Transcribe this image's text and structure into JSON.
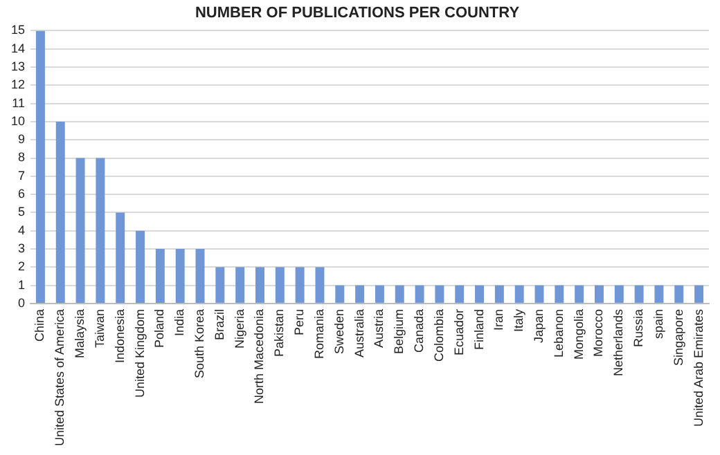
{
  "chart_data": {
    "type": "bar",
    "title": "NUMBER OF PUBLICATIONS PER COUNTRY",
    "categories": [
      "China",
      "United States of America",
      "Malaysia",
      "Taiwan",
      "Indonesia",
      "United Kingdom",
      "Poland",
      "India",
      "South Korea",
      "Brazil",
      "Nigeria",
      "North Macedonia",
      "Pakistan",
      "Peru",
      "Romania",
      "Sweden",
      "Australia",
      "Austria",
      "Belgium",
      "Canada",
      "Colombia",
      "Ecuador",
      "Finland",
      "Iran",
      "Italy",
      "Japan",
      "Lebanon",
      "Mongolia",
      "Morocco",
      "Netherlands",
      "Russia",
      "spain",
      "Singapore",
      "United Arab Emirates"
    ],
    "values": [
      15,
      10,
      8,
      8,
      5,
      4,
      3,
      3,
      3,
      2,
      2,
      2,
      2,
      2,
      2,
      1,
      1,
      1,
      1,
      1,
      1,
      1,
      1,
      1,
      1,
      1,
      1,
      1,
      1,
      1,
      1,
      1,
      1,
      1
    ],
    "color": "#6f97d6",
    "ylim": [
      0,
      15
    ],
    "yticks": [
      0,
      1,
      2,
      3,
      4,
      5,
      6,
      7,
      8,
      9,
      10,
      11,
      12,
      13,
      14,
      15
    ],
    "grid": "y",
    "legend": false
  }
}
